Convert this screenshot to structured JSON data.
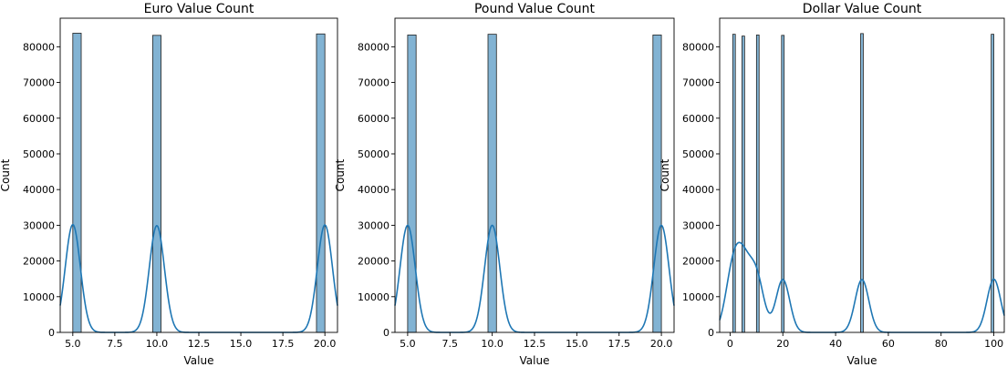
{
  "colors": {
    "bar_fill": "#82b3d3",
    "bar_edge": "#1f1f1f",
    "kde_line": "#1f77b4",
    "axes": "#000000",
    "background": "#ffffff"
  },
  "chart_data": [
    {
      "type": "bar",
      "title": "Euro Value Count",
      "xlabel": "Value",
      "ylabel": "Count",
      "xlim": [
        4.25,
        20.75
      ],
      "ylim": [
        0,
        88000
      ],
      "xticks": [
        5.0,
        7.5,
        10.0,
        12.5,
        15.0,
        17.5,
        20.0
      ],
      "xtick_labels": [
        "5.0",
        "7.5",
        "10.0",
        "12.5",
        "15.0",
        "17.5",
        "20.0"
      ],
      "yticks": [
        0,
        10000,
        20000,
        30000,
        40000,
        50000,
        60000,
        70000,
        80000
      ],
      "ytick_labels": [
        "0",
        "10000",
        "20000",
        "30000",
        "40000",
        "50000",
        "60000",
        "70000",
        "80000"
      ],
      "grid": false,
      "bars": [
        {
          "x0": 5.0,
          "x1": 5.5,
          "count": 83800
        },
        {
          "x0": 9.75,
          "x1": 10.25,
          "count": 83200
        },
        {
          "x0": 19.5,
          "x1": 20.0,
          "count": 83600
        }
      ],
      "kde": {
        "type": "line",
        "peaks": [
          {
            "center": 5.0,
            "height": 30200,
            "width": 0.45
          },
          {
            "center": 10.0,
            "height": 29900,
            "width": 0.45
          },
          {
            "center": 20.0,
            "height": 30100,
            "width": 0.45
          }
        ]
      }
    },
    {
      "type": "bar",
      "title": "Pound Value Count",
      "xlabel": "Value",
      "ylabel": "Count",
      "xlim": [
        4.25,
        20.75
      ],
      "ylim": [
        0,
        88000
      ],
      "xticks": [
        5.0,
        7.5,
        10.0,
        12.5,
        15.0,
        17.5,
        20.0
      ],
      "xtick_labels": [
        "5.0",
        "7.5",
        "10.0",
        "12.5",
        "15.0",
        "17.5",
        "20.0"
      ],
      "yticks": [
        0,
        10000,
        20000,
        30000,
        40000,
        50000,
        60000,
        70000,
        80000
      ],
      "ytick_labels": [
        "0",
        "10000",
        "20000",
        "30000",
        "40000",
        "50000",
        "60000",
        "70000",
        "80000"
      ],
      "grid": false,
      "bars": [
        {
          "x0": 5.0,
          "x1": 5.5,
          "count": 83300
        },
        {
          "x0": 9.75,
          "x1": 10.25,
          "count": 83500
        },
        {
          "x0": 19.5,
          "x1": 20.0,
          "count": 83300
        }
      ],
      "kde": {
        "type": "line",
        "peaks": [
          {
            "center": 5.0,
            "height": 30000,
            "width": 0.45
          },
          {
            "center": 10.0,
            "height": 30000,
            "width": 0.45
          },
          {
            "center": 20.0,
            "height": 30000,
            "width": 0.45
          }
        ]
      }
    },
    {
      "type": "bar",
      "title": "Dollar Value Count",
      "xlabel": "Value",
      "ylabel": "Count",
      "xlim": [
        -3.95,
        103.95
      ],
      "ylim": [
        0,
        88000
      ],
      "xticks": [
        0,
        20,
        40,
        60,
        80,
        100
      ],
      "xtick_labels": [
        "0",
        "20",
        "40",
        "60",
        "80",
        "100"
      ],
      "yticks": [
        0,
        10000,
        20000,
        30000,
        40000,
        50000,
        60000,
        70000,
        80000
      ],
      "ytick_labels": [
        "0",
        "10000",
        "20000",
        "30000",
        "40000",
        "50000",
        "60000",
        "70000",
        "80000"
      ],
      "grid": false,
      "bars": [
        {
          "x0": 1.0,
          "x1": 2.0,
          "count": 83500
        },
        {
          "x0": 4.5,
          "x1": 5.5,
          "count": 83000
        },
        {
          "x0": 10.0,
          "x1": 11.0,
          "count": 83300
        },
        {
          "x0": 19.5,
          "x1": 20.5,
          "count": 83200
        },
        {
          "x0": 49.5,
          "x1": 50.5,
          "count": 83700
        },
        {
          "x0": 99.0,
          "x1": 100.0,
          "count": 83500
        }
      ],
      "kde": {
        "type": "line",
        "peaks": [
          {
            "center": 1.0,
            "height": 16000,
            "width": 2.8
          },
          {
            "center": 5.0,
            "height": 15500,
            "width": 2.8
          },
          {
            "center": 10.0,
            "height": 15000,
            "width": 2.8
          },
          {
            "center": 20.0,
            "height": 14800,
            "width": 2.6
          },
          {
            "center": 50.0,
            "height": 14800,
            "width": 2.6
          },
          {
            "center": 100.0,
            "height": 14900,
            "width": 2.6
          }
        ]
      }
    }
  ]
}
